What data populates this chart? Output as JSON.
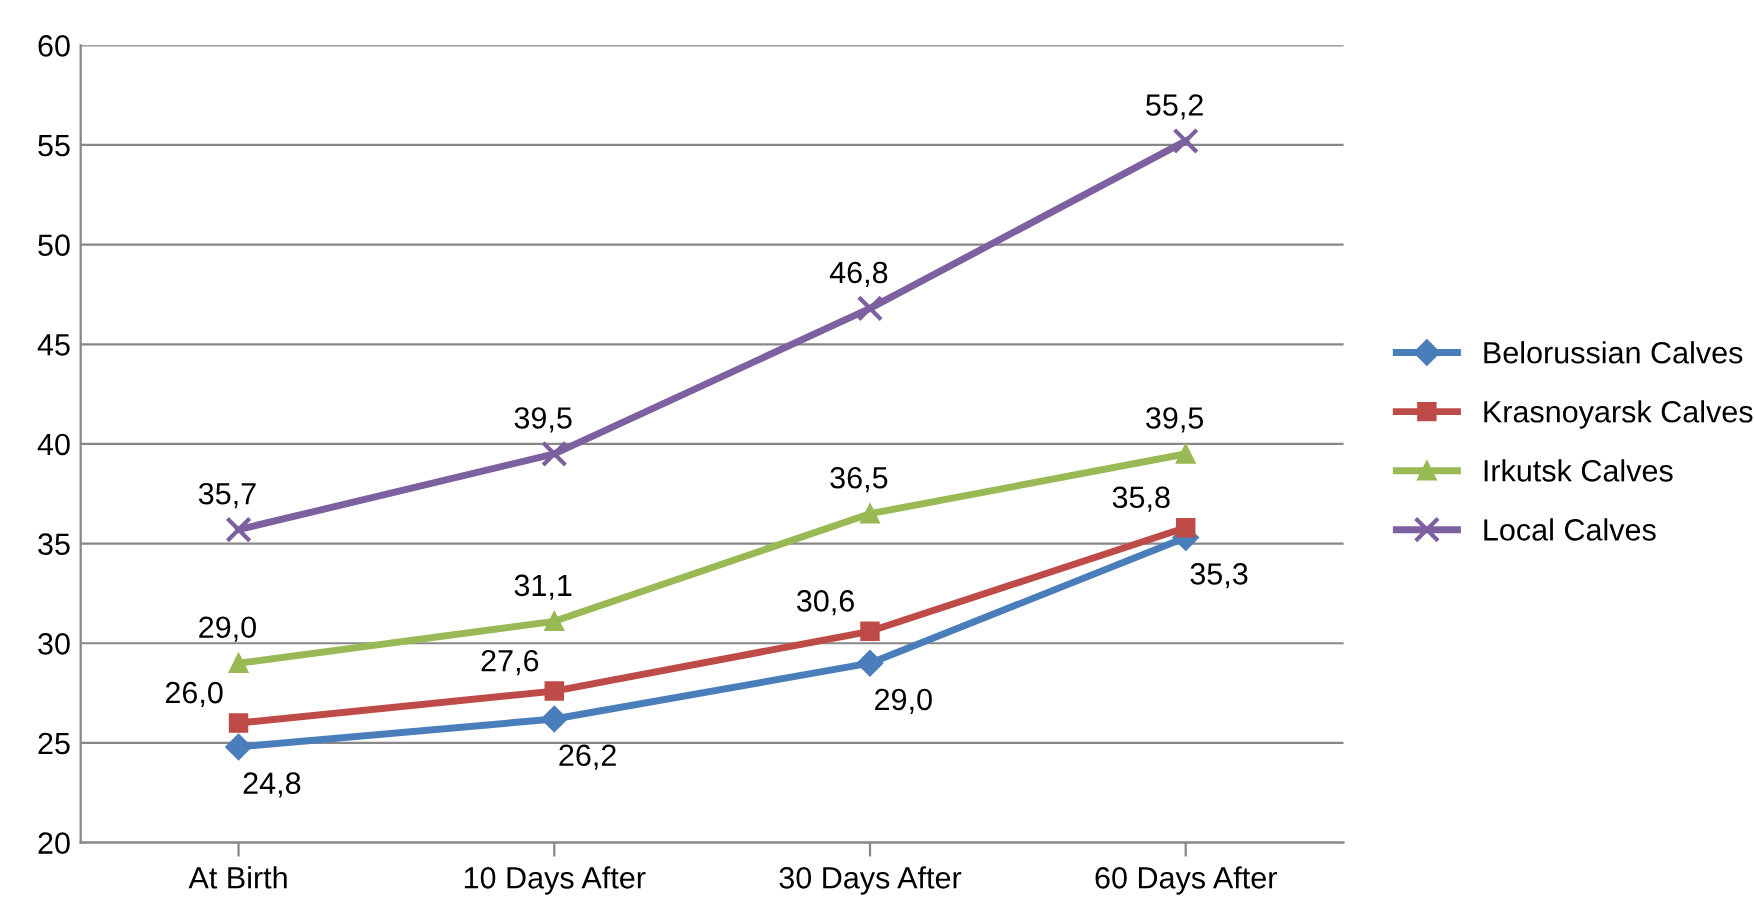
{
  "chart_data": {
    "type": "line",
    "categories": [
      "At Birth",
      "10 Days After",
      "30 Days After",
      "60 Days After"
    ],
    "series": [
      {
        "name": "Belorussian Calves",
        "color": "#4a7ebb",
        "marker": "diamond",
        "values": [
          24.8,
          26.2,
          29.0,
          35.3
        ],
        "value_labels": [
          "24,8",
          "26,2",
          "29,0",
          "35,3"
        ]
      },
      {
        "name": "Krasnoyarsk Calves",
        "color": "#be4b48",
        "marker": "square",
        "values": [
          26.0,
          27.6,
          30.6,
          35.8
        ],
        "value_labels": [
          "26,0",
          "27,6",
          "30,6",
          "35,8"
        ]
      },
      {
        "name": "Irkutsk Calves",
        "color": "#98b954",
        "marker": "triangle",
        "values": [
          29.0,
          31.1,
          36.5,
          39.5
        ],
        "value_labels": [
          "29,0",
          "31,1",
          "36,5",
          "39,5"
        ]
      },
      {
        "name": "Local Calves",
        "color": "#7d60a0",
        "marker": "cross",
        "values": [
          35.7,
          39.5,
          46.8,
          55.2
        ],
        "value_labels": [
          "35,7",
          "39,5",
          "46,8",
          "55,2"
        ]
      }
    ],
    "ylim": [
      20,
      60
    ],
    "yticks": [
      20,
      25,
      30,
      35,
      40,
      45,
      50,
      55,
      60
    ],
    "grid": "y",
    "legend": "right",
    "line_style": "solid"
  }
}
